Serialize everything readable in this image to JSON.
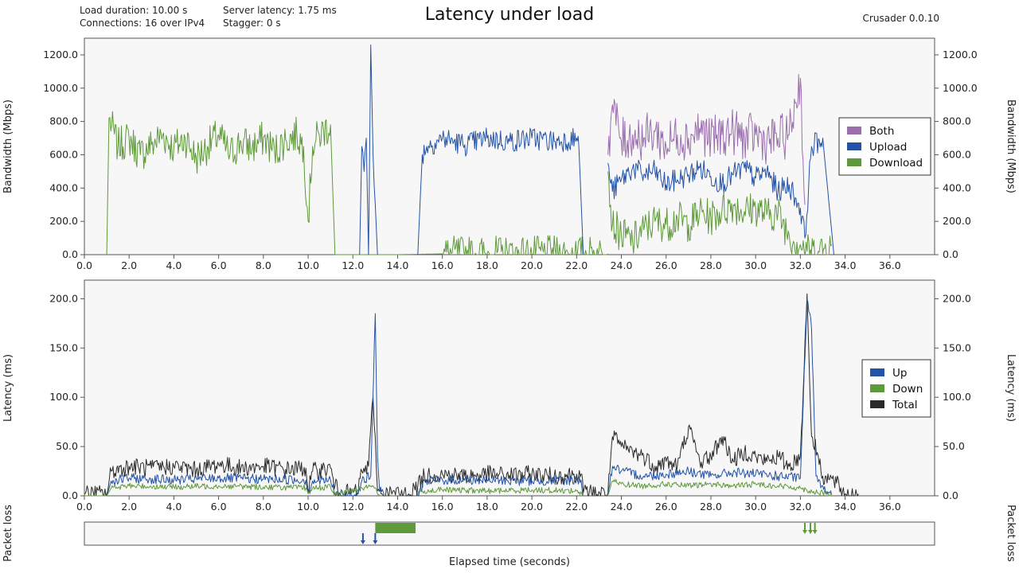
{
  "header": {
    "title": "Latency under load",
    "load_duration": "Load duration: 10.00 s",
    "connections": "Connections: 16 over IPv4",
    "server_latency": "Server latency: 1.75 ms",
    "stagger": "Stagger: 0 s",
    "version": "Crusader 0.0.10"
  },
  "colors": {
    "both": "#9b6fae",
    "upload": "#2452a6",
    "download": "#5e9a3a",
    "total": "#2b2b2b",
    "plot_bg": "#f7f7f7",
    "frame": "#555555"
  },
  "chart_data": [
    {
      "type": "line",
      "id": "bandwidth",
      "ylabel": "Bandwidth (Mbps)",
      "ylabel_right": "Bandwidth (Mbps)",
      "xlim": [
        0,
        38
      ],
      "ylim": [
        0,
        1300
      ],
      "xticks": [
        "0.0",
        "2.0",
        "4.0",
        "6.0",
        "8.0",
        "10.0",
        "12.0",
        "14.0",
        "16.0",
        "18.0",
        "20.0",
        "22.0",
        "24.0",
        "26.0",
        "28.0",
        "30.0",
        "32.0",
        "34.0",
        "36.0"
      ],
      "yticks": [
        "0.0",
        "200.0",
        "400.0",
        "600.0",
        "800.0",
        "1000.0",
        "1200.0"
      ],
      "legend": [
        "Both",
        "Upload",
        "Download"
      ],
      "legend_position": "right",
      "series": [
        {
          "name": "Download",
          "segments": [
            {
              "x": [
                1.0,
                1.1,
                1.5,
                2.0,
                2.5,
                3.0,
                3.5,
                4.0,
                4.5,
                5.0,
                5.5,
                6.0,
                6.5,
                7.0,
                7.5,
                8.0,
                8.5,
                9.0,
                9.5,
                9.8,
                10.0,
                10.2,
                10.5,
                11.0,
                11.2
              ],
              "y": [
                0,
                820,
                650,
                700,
                600,
                660,
                720,
                640,
                700,
                580,
                650,
                720,
                600,
                680,
                640,
                700,
                620,
                690,
                720,
                650,
                200,
                650,
                720,
                780,
                0
              ]
            },
            {
              "x": [
                11.2,
                12.0,
                13.0,
                14.0,
                16.0,
                18.0,
                20.0,
                22.0,
                23.4
              ],
              "y": [
                0,
                0,
                0,
                0,
                5,
                5,
                5,
                5,
                5
              ]
            },
            {
              "x": [
                23.4,
                23.6,
                24.0,
                24.5,
                25.0,
                25.5,
                26.0,
                26.5,
                27.0,
                27.5,
                28.0,
                28.5,
                29.0,
                29.5,
                30.0,
                30.5,
                31.0,
                31.5,
                32.0,
                32.3,
                32.8,
                33.4
              ],
              "y": [
                500,
                180,
                120,
                80,
                150,
                200,
                180,
                220,
                180,
                250,
                220,
                270,
                300,
                260,
                280,
                240,
                250,
                120,
                60,
                20,
                20,
                60
              ]
            }
          ]
        },
        {
          "name": "Upload",
          "segments": [
            {
              "x": [
                12.3,
                12.4,
                12.5,
                12.6,
                12.7,
                12.8,
                12.9,
                13.0,
                13.1
              ],
              "y": [
                0,
                650,
                500,
                700,
                0,
                1260,
                600,
                300,
                0
              ]
            },
            {
              "x": [
                14.9,
                15.1,
                15.3,
                16.0,
                17.0,
                18.0,
                19.0,
                20.0,
                21.0,
                22.0,
                22.1,
                22.3
              ],
              "y": [
                0,
                600,
                650,
                700,
                660,
                700,
                680,
                700,
                680,
                700,
                650,
                0
              ]
            },
            {
              "x": [
                23.4,
                23.6,
                24.0,
                24.5,
                25.0,
                25.5,
                26.0,
                26.5,
                27.0,
                27.5,
                28.0,
                28.5,
                29.0,
                29.5,
                30.0,
                30.5,
                31.0,
                31.5,
                32.0,
                32.2,
                32.5,
                33.0,
                33.5
              ],
              "y": [
                550,
                380,
                450,
                520,
                480,
                500,
                420,
                450,
                480,
                520,
                470,
                430,
                480,
                520,
                460,
                500,
                380,
                420,
                280,
                100,
                650,
                700,
                0
              ]
            }
          ]
        },
        {
          "name": "Both",
          "segments": [
            {
              "x": [
                23.4,
                23.6,
                24.0,
                24.5,
                25.0,
                25.5,
                26.0,
                26.5,
                27.0,
                27.5,
                28.0,
                28.5,
                29.0,
                29.5,
                30.0,
                30.5,
                31.0,
                31.5,
                32.0,
                32.2
              ],
              "y": [
                600,
                900,
                680,
                720,
                700,
                740,
                650,
                720,
                700,
                760,
                690,
                720,
                740,
                700,
                720,
                680,
                700,
                720,
                1060,
                300
              ]
            }
          ]
        }
      ]
    },
    {
      "type": "line",
      "id": "latency",
      "ylabel": "Latency (ms)",
      "ylabel_right": "Latency (ms)",
      "xlim": [
        0,
        38
      ],
      "ylim": [
        0,
        210
      ],
      "xticks": [
        "0.0",
        "2.0",
        "4.0",
        "6.0",
        "8.0",
        "10.0",
        "12.0",
        "14.0",
        "16.0",
        "18.0",
        "20.0",
        "22.0",
        "24.0",
        "26.0",
        "28.0",
        "30.0",
        "32.0",
        "34.0",
        "36.0"
      ],
      "yticks": [
        "0.0",
        "50.0",
        "100.0",
        "150.0",
        "200.0"
      ],
      "legend": [
        "Up",
        "Down",
        "Total"
      ],
      "legend_position": "right",
      "series": [
        {
          "name": "Total",
          "segments": [
            {
              "x": [
                0,
                1.0,
                1.2,
                2,
                3,
                4,
                5,
                6,
                7,
                8,
                9,
                9.9,
                10.0,
                10.2,
                11.0,
                11.2,
                11.4,
                12.2,
                12.4,
                12.7,
                12.9,
                13.0,
                13.1,
                13.3
              ],
              "y": [
                2,
                2,
                25,
                30,
                28,
                30,
                26,
                32,
                28,
                30,
                27,
                28,
                5,
                25,
                28,
                10,
                3,
                3,
                25,
                30,
                100,
                60,
                5,
                2
              ]
            },
            {
              "x": [
                13.3,
                14.5,
                14.9,
                15.2,
                16,
                17,
                18,
                19,
                20,
                21,
                22,
                22.2,
                22.3,
                23.4
              ],
              "y": [
                2,
                2,
                10,
                20,
                22,
                20,
                22,
                21,
                22,
                20,
                22,
                22,
                3,
                3
              ]
            },
            {
              "x": [
                23.4,
                23.6,
                24,
                24.5,
                25,
                25.5,
                26,
                26.5,
                27,
                27.5,
                28,
                28.5,
                29,
                29.5,
                30,
                30.5,
                31,
                31.5,
                32,
                32.3,
                32.5,
                32.8,
                33,
                33.5,
                34,
                34.6
              ],
              "y": [
                3,
                60,
                50,
                45,
                40,
                30,
                35,
                30,
                70,
                35,
                40,
                60,
                35,
                45,
                40,
                35,
                40,
                30,
                40,
                205,
                60,
                40,
                20,
                15,
                2,
                2
              ]
            }
          ]
        },
        {
          "name": "Up",
          "segments": [
            {
              "x": [
                0,
                1.0,
                1.2,
                2,
                4,
                6,
                8,
                9.9,
                10.0,
                10.2,
                11.0,
                11.2,
                12.2,
                12.4,
                12.8,
                13.0,
                13.1,
                13.2,
                13.4
              ],
              "y": [
                0,
                0,
                15,
                18,
                16,
                18,
                17,
                16,
                3,
                15,
                16,
                2,
                2,
                15,
                20,
                185,
                40,
                5,
                1
              ]
            },
            {
              "x": [
                14.9,
                15.2,
                16,
                18,
                20,
                22,
                22.2,
                22.3
              ],
              "y": [
                1,
                15,
                16,
                16,
                15,
                16,
                16,
                1
              ]
            },
            {
              "x": [
                23.4,
                23.6,
                24,
                25,
                26,
                27,
                28,
                29,
                30,
                31,
                32,
                32.3,
                32.5,
                32.7,
                33,
                33.4
              ],
              "y": [
                1,
                30,
                25,
                20,
                22,
                25,
                20,
                24,
                22,
                20,
                18,
                200,
                170,
                20,
                10,
                1
              ]
            }
          ]
        },
        {
          "name": "Down",
          "segments": [
            {
              "x": [
                0,
                1.0,
                1.2,
                2,
                4,
                6,
                8,
                9.9,
                10.0,
                10.2,
                11.0,
                11.2,
                12.4,
                12.8,
                13.0,
                13.2
              ],
              "y": [
                0,
                0,
                8,
                10,
                9,
                10,
                9,
                8,
                2,
                8,
                9,
                1,
                8,
                10,
                8,
                1
              ]
            },
            {
              "x": [
                14.9,
                15.2,
                16,
                18,
                20,
                22,
                22.3
              ],
              "y": [
                1,
                5,
                6,
                5,
                6,
                5,
                1
              ]
            },
            {
              "x": [
                23.4,
                23.6,
                24,
                25,
                26,
                27,
                28,
                29,
                30,
                31,
                32,
                32.4,
                33,
                33.4
              ],
              "y": [
                1,
                15,
                12,
                10,
                12,
                10,
                12,
                10,
                12,
                10,
                8,
                5,
                3,
                1
              ]
            }
          ]
        }
      ]
    },
    {
      "type": "bar",
      "id": "packet_loss",
      "ylabel": "Packet loss",
      "ylabel_right": "Packet loss",
      "xlabel": "Elapsed time (seconds)",
      "xlim": [
        0,
        38
      ],
      "upload_events": [
        12.45,
        13.0
      ],
      "download_band": [
        13.0,
        14.8
      ],
      "download_events": [
        32.2,
        32.45,
        32.65
      ]
    }
  ]
}
